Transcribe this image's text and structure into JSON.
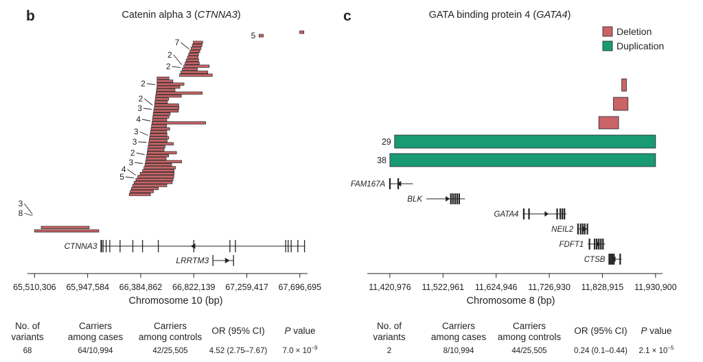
{
  "colors": {
    "deletion": "#c96467",
    "duplication": "#1a9a73",
    "text": "#222222"
  },
  "chart_data": [
    {
      "type": "bar",
      "panel_label": "b",
      "title": "Catenin alpha 3 (",
      "title_gene": "CTNNA3",
      "title_end": ")",
      "xlabel": "Chromosome 10 (bp)",
      "xlim": [
        65480000,
        67760000
      ],
      "xticks": [
        65510306,
        65947584,
        66384862,
        66822139,
        67259417,
        67696695
      ],
      "xtick_labels": [
        "65,510,306",
        "65,947,584",
        "66,384,862",
        "66,822,139",
        "67,259,417",
        "67,696,695"
      ],
      "series": [
        {
          "values": [
            [
              67360000,
              67395000,
              5
            ],
            [
              67695000,
              67730000,
              1
            ],
            [
              66818000,
              66896000,
              1
            ],
            [
              66810000,
              66890000,
              1
            ],
            [
              66800000,
              66882000,
              1
            ],
            [
              66790000,
              66872000,
              7
            ],
            [
              66780000,
              66862000,
              1
            ],
            [
              66770000,
              66858000,
              1
            ],
            [
              66760000,
              66862000,
              1
            ],
            [
              66750000,
              66868000,
              1
            ],
            [
              66740000,
              66950000,
              1
            ],
            [
              66728000,
              66852000,
              1
            ],
            [
              66716000,
              66938000,
              1
            ],
            [
              66705000,
              66975000,
              2
            ],
            [
              66520000,
              66618000,
              1
            ],
            [
              66520000,
              66650000,
              1
            ],
            [
              66520000,
              66742000,
              2
            ],
            [
              66518000,
              66708000,
              1
            ],
            [
              66515000,
              66668000,
              1
            ],
            [
              66512000,
              66892000,
              1
            ],
            [
              66508000,
              66720000,
              2
            ],
            [
              66505000,
              66615000,
              1
            ],
            [
              66502000,
              66605000,
              3
            ],
            [
              66500000,
              66698000,
              1
            ],
            [
              66496000,
              66700000,
              4
            ],
            [
              66492000,
              66695000,
              1
            ],
            [
              66488000,
              66628000,
              1
            ],
            [
              66485000,
              66618000,
              3
            ],
            [
              66482000,
              66600000,
              1
            ],
            [
              66478000,
              66920000,
              3
            ],
            [
              66474000,
              66598000,
              1
            ],
            [
              66470000,
              66624000,
              1
            ],
            [
              66466000,
              66600000,
              2
            ],
            [
              66462000,
              66602000,
              1
            ],
            [
              66458000,
              66616000,
              1
            ],
            [
              66454000,
              66603000,
              3
            ],
            [
              66450000,
              66654000,
              1
            ],
            [
              66446000,
              66586000,
              4
            ],
            [
              66442000,
              66578000,
              5
            ],
            [
              66438000,
              66680000,
              1
            ],
            [
              66434000,
              66615000,
              1
            ],
            [
              66430000,
              66595000,
              1
            ],
            [
              66425000,
              66722000,
              1
            ],
            [
              66420000,
              66640000,
              1
            ],
            [
              66412000,
              66672000,
              1
            ],
            [
              66400000,
              66660000,
              1
            ],
            [
              66380000,
              66660000,
              1
            ],
            [
              66360000,
              66658000,
              1
            ],
            [
              66345000,
              66652000,
              1
            ],
            [
              66330000,
              66645000,
              3
            ],
            [
              66318000,
              66600000,
              1
            ],
            [
              66308000,
              66530000,
              8
            ],
            [
              66298000,
              66490000,
              1
            ],
            [
              66290000,
              66465000,
              1
            ],
            [
              65565000,
              65960000,
              1
            ],
            [
              65510306,
              66040000,
              1
            ]
          ]
        }
      ],
      "count_labels": [
        "5",
        "7",
        "2",
        "2",
        "2",
        "2",
        "3",
        "4",
        "3",
        "3",
        "2",
        "3",
        "4",
        "5",
        "3",
        "8"
      ],
      "genes": [
        {
          "name": "CTNNA3",
          "start": 66060000,
          "end": 67740000,
          "strand": "-"
        },
        {
          "name": "LRRTM3",
          "start": 66980000,
          "end": 67150000,
          "strand": "+"
        }
      ],
      "table": {
        "headers": [
          [
            "No. of",
            "variants"
          ],
          [
            "Carriers",
            "among cases"
          ],
          [
            "Carriers",
            "among controls"
          ],
          [
            "OR (95% CI)"
          ],
          [
            "P value"
          ]
        ],
        "values": [
          "68",
          "64/10,994",
          "42/25,505",
          "4.52 (2.75–7.67)",
          "7.0 × 10",
          "−9"
        ]
      }
    },
    {
      "type": "bar",
      "panel_label": "c",
      "title": "GATA binding protein 4 (",
      "title_gene": "GATA4",
      "title_end": ")",
      "xlabel": "Chromosome 8 (bp)",
      "xlim": [
        11400000,
        11935000
      ],
      "xticks": [
        11420976,
        11522961,
        11624946,
        11726930,
        11828915,
        11930900
      ],
      "xtick_labels": [
        "11,420,976",
        "11,522,961",
        "11,624,946",
        "11,726,930",
        "11,828,915",
        "11,930,900"
      ],
      "legend": [
        "Deletion",
        "Duplication"
      ],
      "legend_position": "top-right",
      "series": [
        {
          "name": "Deletion",
          "values": [
            [
              11866000,
              11875000
            ],
            [
              11850000,
              11878000
            ],
            [
              11822000,
              11860000
            ]
          ]
        },
        {
          "name": "Duplication",
          "values": [
            [
              11430000,
              11930900,
              29
            ],
            [
              11420976,
              11930900,
              38
            ]
          ]
        }
      ],
      "genes": [
        {
          "name": "FAM167A",
          "start": 11420000,
          "end": 11465000,
          "strand": "-",
          "exons": [
            11421000,
            11437000
          ]
        },
        {
          "name": "BLK",
          "start": 11491000,
          "end": 11565000,
          "strand": "+",
          "exons": [
            11538000,
            11542000,
            11546000,
            11550000,
            11554000
          ]
        },
        {
          "name": "GATA4",
          "start": 11676000,
          "end": 11760000,
          "strand": "+",
          "exons": [
            11678000,
            11688000,
            11742000,
            11748000,
            11752000,
            11756000
          ]
        },
        {
          "name": "NEIL2",
          "start": 11781000,
          "end": 11802000,
          "strand": "+",
          "exons": [
            11782000,
            11787000,
            11791000,
            11795000,
            11800000
          ]
        },
        {
          "name": "FDFT1",
          "start": 11801000,
          "end": 11834000,
          "strand": "+",
          "exons": [
            11804000,
            11814000,
            11818000,
            11822000,
            11826000,
            11830000
          ]
        },
        {
          "name": "CTSB",
          "start": 11842000,
          "end": 11866000,
          "strand": "-",
          "exons": [
            11842000,
            11845000,
            11848000,
            11851000,
            11863000
          ]
        }
      ],
      "table": {
        "headers": [
          [
            "No. of",
            "variants"
          ],
          [
            "Carriers",
            "among cases"
          ],
          [
            "Carriers",
            "among controls"
          ],
          [
            "OR (95% CI)"
          ],
          [
            "P value"
          ]
        ],
        "values": [
          "2",
          "8/10,994",
          "44/25,505",
          "0.24 (0.1–0.44)",
          "2.1 × 10",
          "−5"
        ]
      }
    }
  ]
}
